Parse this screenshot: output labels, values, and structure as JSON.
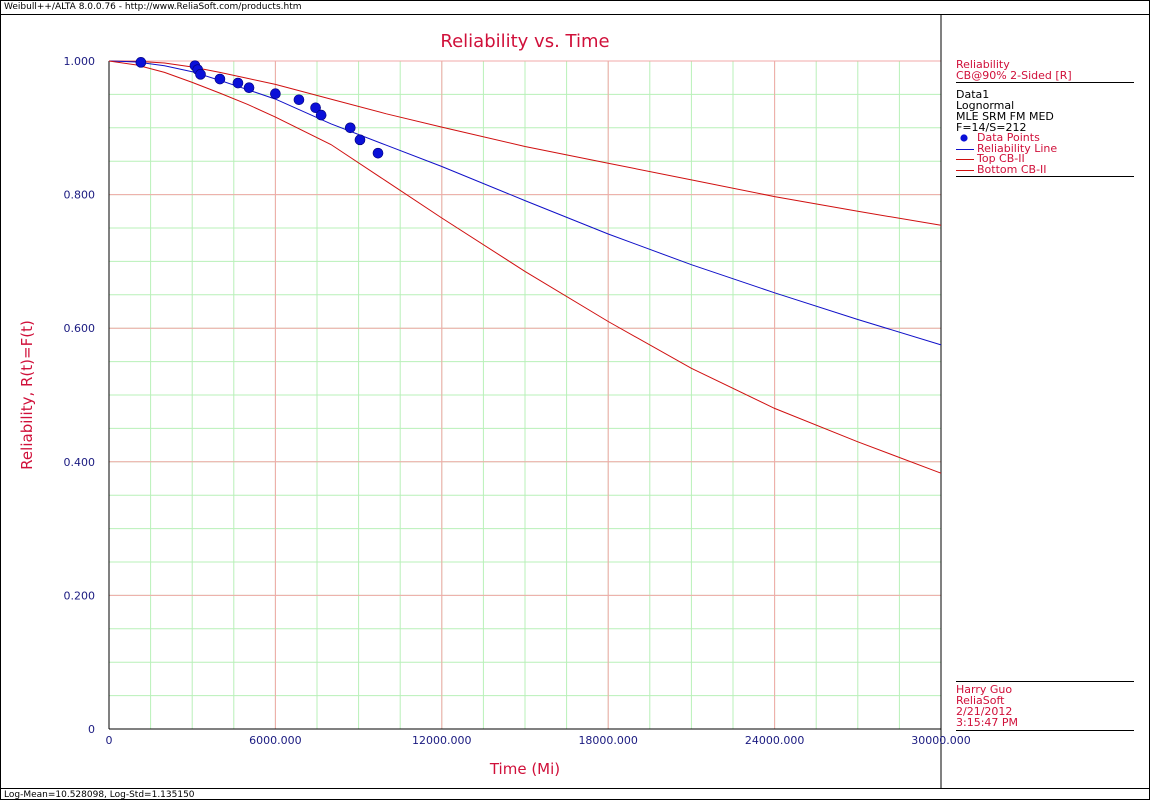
{
  "window": {
    "title_bar": "Weibull++/ALTA 8.0.0.76 - http://www.ReliaSoft.com/products.htm",
    "status_bar": "Log-Mean=10.528098, Log-Std=1.135150"
  },
  "colors": {
    "title": "#d0103a",
    "axis_title": "#d0103a",
    "tick_labels": "#1a1a80",
    "major_grid": "#f2a8a8",
    "minor_grid": "#b8f0b8",
    "reliability_line": "#1010c8",
    "confidence_bounds": "#d01010",
    "data_points": "#0a10d8",
    "legend_text": "#d0103a"
  },
  "legend": {
    "header": "Reliability",
    "bounds_label": "CB@90% 2-Sided [R]",
    "dataset": "Data1",
    "distribution": "Lognormal",
    "method": "MLE SRM FM MED",
    "counts": "F=14/S=212",
    "items": [
      {
        "label": "Data Points",
        "icon": "filled-circle"
      },
      {
        "label": "Reliability Line",
        "icon": "blue-line"
      },
      {
        "label": "Top CB-II",
        "icon": "red-line"
      },
      {
        "label": "Bottom CB-II",
        "icon": "red-line"
      }
    ]
  },
  "signature": {
    "user": "Harry Guo",
    "company": "ReliaSoft",
    "date": "2/21/2012",
    "time": "3:15:47 PM"
  },
  "chart_data": {
    "type": "line",
    "title": "Reliability vs. Time",
    "xlabel": "Time (Mi)",
    "ylabel": "Reliability, R(t)=F(t)",
    "xlim": [
      0,
      30000
    ],
    "ylim": [
      0,
      1
    ],
    "x_ticks": [
      {
        "value": 0,
        "label": "0"
      },
      {
        "value": 6000,
        "label": "6000.000"
      },
      {
        "value": 12000,
        "label": "12000.000"
      },
      {
        "value": 18000,
        "label": "18000.000"
      },
      {
        "value": 24000,
        "label": "24000.000"
      },
      {
        "value": 30000,
        "label": "30000.000"
      }
    ],
    "y_ticks": [
      {
        "value": 0,
        "label": "0"
      },
      {
        "value": 0.2,
        "label": "0.200"
      },
      {
        "value": 0.4,
        "label": "0.400"
      },
      {
        "value": 0.6,
        "label": "0.600"
      },
      {
        "value": 0.8,
        "label": "0.800"
      },
      {
        "value": 1.0,
        "label": "1.000"
      }
    ],
    "x_minor_step": 1500,
    "y_minor_step": 0.05,
    "grid": true,
    "series": [
      {
        "name": "Top CB-II",
        "kind": "line",
        "x": [
          0,
          1000,
          2000,
          3000,
          4000,
          5000,
          6000,
          8000,
          10000,
          12000,
          15000,
          18000,
          21000,
          24000,
          27000,
          30000
        ],
        "y": [
          1.0,
          0.9995,
          0.997,
          0.991,
          0.983,
          0.974,
          0.965,
          0.943,
          0.921,
          0.901,
          0.872,
          0.847,
          0.822,
          0.797,
          0.775,
          0.754
        ]
      },
      {
        "name": "Reliability Line",
        "kind": "line",
        "x": [
          0,
          1000,
          2000,
          3000,
          4000,
          5000,
          6000,
          8000,
          10000,
          12000,
          15000,
          18000,
          21000,
          24000,
          27000,
          30000
        ],
        "y": [
          1.0,
          0.9985,
          0.993,
          0.984,
          0.971,
          0.957,
          0.943,
          0.906,
          0.874,
          0.842,
          0.791,
          0.741,
          0.695,
          0.653,
          0.613,
          0.575
        ]
      },
      {
        "name": "Bottom CB-II",
        "kind": "line",
        "x": [
          0,
          1000,
          2000,
          3000,
          4000,
          5000,
          6000,
          8000,
          10000,
          12000,
          15000,
          18000,
          21000,
          24000,
          27000,
          30000
        ],
        "y": [
          1.0,
          0.994,
          0.983,
          0.968,
          0.952,
          0.935,
          0.916,
          0.875,
          0.82,
          0.765,
          0.685,
          0.61,
          0.54,
          0.48,
          0.43,
          0.383
        ]
      },
      {
        "name": "Data Points",
        "kind": "scatter",
        "x": [
          1150,
          3100,
          3200,
          3300,
          4000,
          4650,
          5050,
          6000,
          6850,
          7450,
          7650,
          8700,
          9050,
          9700
        ],
        "y": [
          0.998,
          0.993,
          0.987,
          0.98,
          0.973,
          0.967,
          0.96,
          0.951,
          0.942,
          0.93,
          0.919,
          0.9,
          0.882,
          0.862
        ]
      }
    ]
  }
}
